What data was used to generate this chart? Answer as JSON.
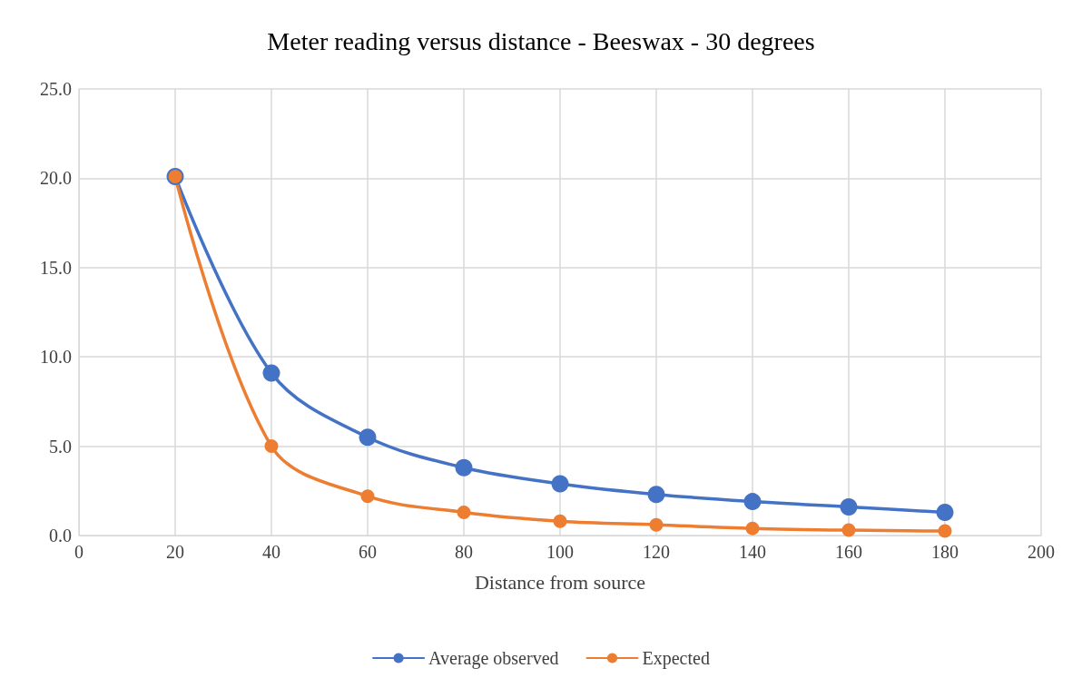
{
  "chart_data": {
    "type": "line",
    "title": "Meter reading versus distance - Beeswax - 30 degrees",
    "xlabel": "Distance from source",
    "x": [
      20,
      40,
      60,
      80,
      100,
      120,
      140,
      160,
      180
    ],
    "series": [
      {
        "name": "Average observed",
        "color": "#4472c4",
        "values": [
          20.1,
          9.1,
          5.5,
          3.8,
          2.9,
          2.3,
          1.9,
          1.6,
          1.3
        ]
      },
      {
        "name": "Expected",
        "color": "#ed7d31",
        "values": [
          20.1,
          5.0,
          2.2,
          1.3,
          0.8,
          0.6,
          0.4,
          0.3,
          0.25
        ]
      }
    ],
    "xlim": [
      0,
      200
    ],
    "xticks": [
      0,
      20,
      40,
      60,
      80,
      100,
      120,
      140,
      160,
      180,
      200
    ],
    "ylim": [
      0,
      25
    ],
    "yticks": [
      {
        "value": 0,
        "label": "0.0"
      },
      {
        "value": 5,
        "label": "5.0"
      },
      {
        "value": 10,
        "label": "10.0"
      },
      {
        "value": 15,
        "label": "15.0"
      },
      {
        "value": 20,
        "label": "20.0"
      },
      {
        "value": 25,
        "label": "25.0"
      }
    ],
    "grid": true,
    "legend": "bottom",
    "marker": "circle",
    "line_style": "solid"
  }
}
